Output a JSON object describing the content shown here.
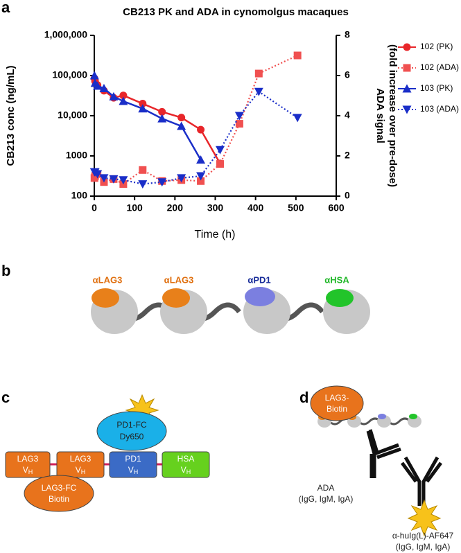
{
  "panel_labels": [
    "a",
    "b",
    "c",
    "d"
  ],
  "chart_data": {
    "type": "line",
    "title": "CB213 PK and ADA in cynomolgus macaques",
    "xlabel": "Time (h)",
    "ylabel": "CB213 conc (ng/mL)",
    "y2label": [
      "ADA signal",
      "(fold increase over pre-dose)"
    ],
    "xlim": [
      0,
      600
    ],
    "xticks": [
      0,
      100,
      200,
      300,
      400,
      500,
      600
    ],
    "ylim": [
      100,
      1000000
    ],
    "ylog": true,
    "yticks": [
      100,
      1000,
      {
        "value": 10000,
        "label": "10,000"
      },
      {
        "value": 100000,
        "label": "100,000"
      },
      {
        "value": 1000000,
        "label": "1,000,000"
      }
    ],
    "y2lim": [
      0,
      8
    ],
    "y2ticks": [
      0,
      2,
      4,
      6,
      8
    ],
    "grid": false,
    "legend": "right",
    "series": [
      {
        "name": "102 (PK)",
        "color": "#e8262a",
        "marker": "circle",
        "dash": false,
        "x": [
          0.5,
          2,
          8,
          24,
          48,
          72,
          120,
          168,
          216,
          264,
          312
        ],
        "values": [
          85000,
          72000,
          58000,
          42000,
          28000,
          32000,
          20000,
          12500,
          9000,
          4500,
          650
        ]
      },
      {
        "name": "102 (ADA)",
        "color": "#f05050",
        "marker": "square",
        "dash": true,
        "axis": "y2",
        "x": [
          0.5,
          2,
          8,
          24,
          48,
          72,
          120,
          168,
          216,
          264,
          312,
          360,
          408,
          504
        ],
        "values": [
          0.9,
          1.0,
          1.1,
          0.7,
          0.85,
          0.6,
          1.3,
          0.75,
          0.8,
          0.75,
          1.6,
          3.6,
          6.1,
          7.0
        ]
      },
      {
        "name": "103 (PK)",
        "color": "#1a2ec8",
        "marker": "triangle-up",
        "dash": false,
        "x": [
          0.5,
          2,
          8,
          24,
          48,
          72,
          120,
          168,
          216,
          264
        ],
        "values": [
          100000,
          65000,
          55000,
          48000,
          30000,
          23000,
          15000,
          8500,
          5500,
          800
        ]
      },
      {
        "name": "103 (ADA)",
        "color": "#1a2ec8",
        "marker": "triangle-down",
        "dash": true,
        "axis": "y2",
        "x": [
          0.5,
          2,
          8,
          24,
          48,
          72,
          120,
          168,
          216,
          264,
          312,
          360,
          408,
          504
        ],
        "values": [
          1.2,
          1.2,
          1.1,
          0.9,
          0.85,
          0.8,
          0.6,
          0.7,
          0.9,
          1.0,
          2.3,
          4.0,
          5.2,
          3.9
        ]
      }
    ]
  },
  "panel_b": {
    "labels": [
      "αLAG3",
      "αLAG3",
      "αPD1",
      "αHSA"
    ]
  },
  "panel_c": {
    "domains": [
      {
        "name": "LAG3",
        "v": "V",
        "sub": "H"
      },
      {
        "name": "LAG3",
        "v": "V",
        "sub": "H"
      },
      {
        "name": "PD1",
        "v": "V",
        "sub": "H"
      },
      {
        "name": "HSA",
        "v": "V",
        "sub": "H"
      }
    ],
    "detect": [
      "PD1-FC",
      "Dy650"
    ],
    "capture": [
      "LAG3-FC",
      "Biotin"
    ]
  },
  "panel_d": {
    "capture": [
      "LAG3-",
      "Biotin"
    ],
    "ada": [
      "ADA",
      "(IgG, IgM, IgA)"
    ],
    "secondary": [
      "α-huIg(L)-AF647",
      "(IgG, IgM, IgA)"
    ]
  }
}
